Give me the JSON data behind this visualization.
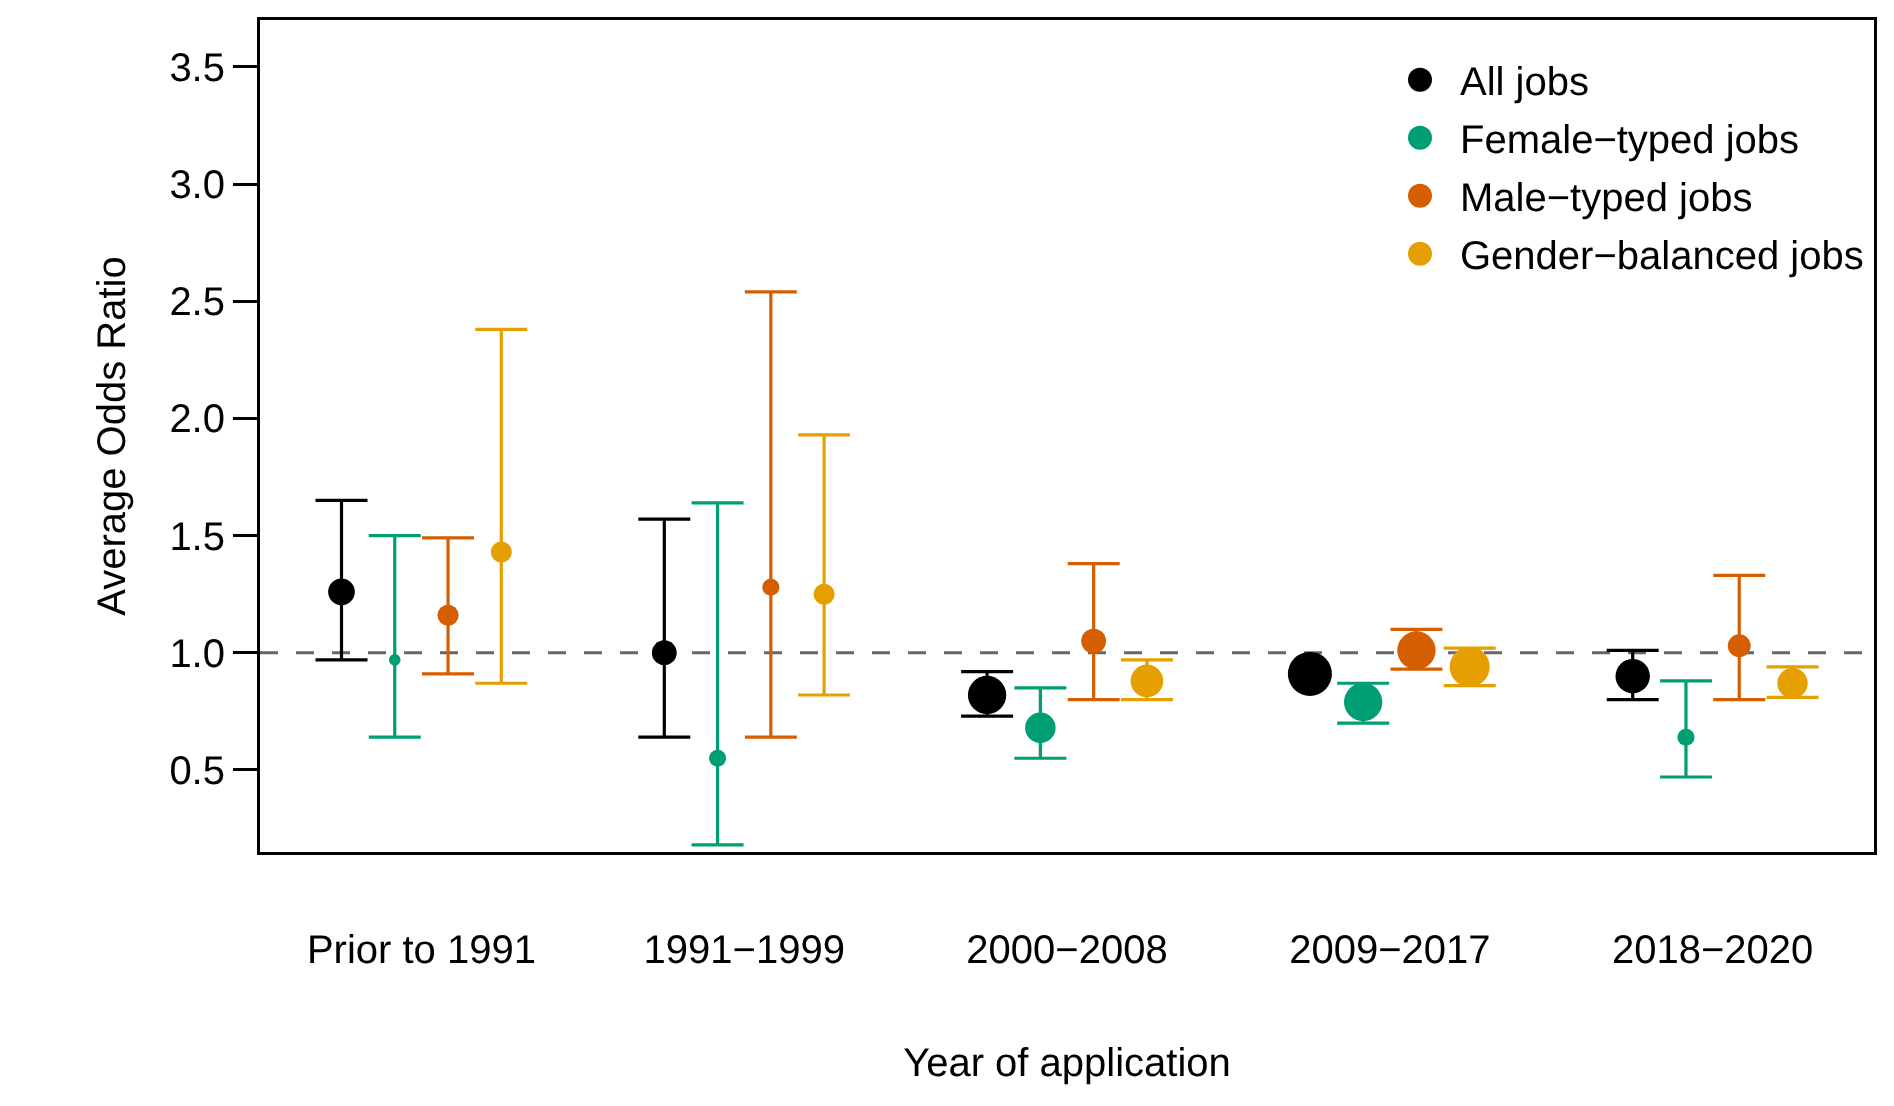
{
  "chart_data": {
    "type": "bubble",
    "xlabel": "Year of application",
    "ylabel": "Average Odds Ratio",
    "categories": [
      "Prior to 1991",
      "1991−1999",
      "2000−2008",
      "2009−2017",
      "2018−2020"
    ],
    "series": [
      {
        "name": "All jobs",
        "color": "#000000",
        "values": [
          1.26,
          1.0,
          0.82,
          0.91,
          0.9
        ],
        "errors": [
          [
            0.97,
            1.65
          ],
          [
            0.64,
            1.57
          ],
          [
            0.73,
            0.92
          ],
          null,
          [
            0.8,
            1.01
          ]
        ],
        "sizes": [
          0.37,
          0.32,
          0.76,
          1,
          0.61
        ]
      },
      {
        "name": "Female−typed jobs",
        "color": "#009e73",
        "values": [
          0.97,
          0.55,
          0.68,
          0.79,
          0.64
        ],
        "errors": [
          [
            0.64,
            1.5
          ],
          [
            0.18,
            1.64
          ],
          [
            0.55,
            0.85
          ],
          [
            0.7,
            0.87
          ],
          [
            0.47,
            0.88
          ]
        ],
        "sizes": [
          0.07,
          0.15,
          0.48,
          0.76,
          0.15
        ]
      },
      {
        "name": "Male−typed jobs",
        "color": "#d55e00",
        "values": [
          1.16,
          1.28,
          1.05,
          1.01,
          1.03
        ],
        "errors": [
          [
            0.91,
            1.49
          ],
          [
            0.64,
            2.54
          ],
          [
            0.8,
            1.38
          ],
          [
            0.93,
            1.1
          ],
          [
            0.8,
            1.33
          ]
        ],
        "sizes": [
          0.23,
          0.15,
          0.32,
          0.76,
          0.27
        ]
      },
      {
        "name": "Gender−balanced jobs",
        "color": "#e69f00",
        "values": [
          1.43,
          1.25,
          0.88,
          0.94,
          0.87
        ],
        "errors": [
          [
            0.87,
            2.38
          ],
          [
            0.82,
            1.93
          ],
          [
            0.8,
            0.97
          ],
          [
            0.86,
            1.02
          ],
          [
            0.81,
            0.94
          ]
        ],
        "sizes": [
          0.23,
          0.23,
          0.55,
          0.83,
          0.48
        ]
      }
    ],
    "ylim": [
      0.15,
      3.7
    ],
    "yticks": [
      0.5,
      {
        "value": 1,
        "label": "1.0"
      },
      1.5,
      {
        "value": 2,
        "label": "2.0"
      },
      2.5,
      {
        "value": 3,
        "label": "3.0"
      },
      3.5
    ],
    "ref_lines": [
      {
        "axis": "y",
        "value": 1,
        "color": "#666666",
        "line_style": "dashed"
      }
    ],
    "grid": false,
    "legend": "top right",
    "marker": "circle"
  }
}
